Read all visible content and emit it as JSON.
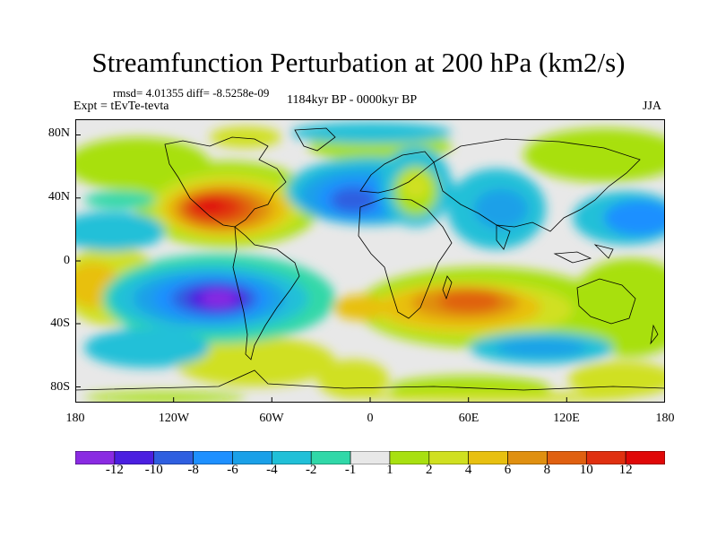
{
  "title": "Streamfunction Perturbation at 200 hPa (km2/s)",
  "stats": "rmsd= 4.01355 diff= -8.5258e-09",
  "expt": "Expt = tEvTe-tevta",
  "period": "1184kyr BP - 0000kyr BP",
  "season": "JJA",
  "map": {
    "projection": "cylindrical equidistant",
    "lon_range": [
      -180,
      180
    ],
    "lat_range": [
      -90,
      90
    ],
    "y_ticks": [
      "80N",
      "40N",
      "0",
      "40S",
      "80S"
    ],
    "x_ticks": [
      "180",
      "120W",
      "60W",
      "0",
      "60E",
      "120E",
      "180"
    ],
    "features": [
      {
        "name": "max over North America",
        "lon": -105,
        "lat": 35,
        "value": 12
      },
      {
        "name": "min over South Pacific",
        "lon": -90,
        "lat": -25,
        "value": -12
      },
      {
        "name": "max over southern Africa / Indian Ocean",
        "lon": 60,
        "lat": -30,
        "value": 8
      },
      {
        "name": "min over North Atlantic / Mediterranean",
        "lon": -10,
        "lat": 40,
        "value": -8
      },
      {
        "name": "max over Eastern Europe",
        "lon": 40,
        "lat": 52,
        "value": 4
      }
    ]
  },
  "colorbar": {
    "labels": [
      "-12",
      "-10",
      "-8",
      "-6",
      "-4",
      "-2",
      "-1",
      "1",
      "2",
      "4",
      "6",
      "8",
      "10",
      "12"
    ],
    "colors": [
      "#8a2be2",
      "#4b1fe0",
      "#2f5fe0",
      "#1e90ff",
      "#1aa0e8",
      "#20c0d8",
      "#30d8a8",
      "#e8e8e8",
      "#a8e010",
      "#d0e020",
      "#e8c010",
      "#e09010",
      "#e06010",
      "#e03010",
      "#e00808"
    ]
  }
}
